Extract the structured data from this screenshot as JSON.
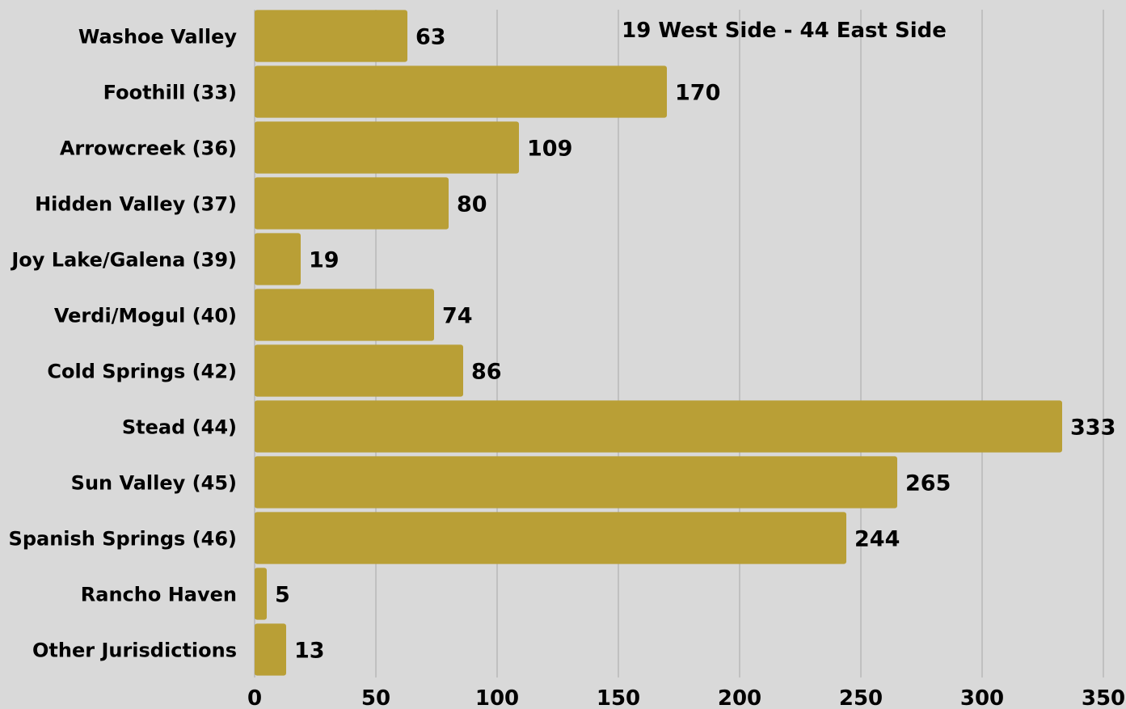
{
  "chart_data": {
    "type": "bar",
    "orientation": "horizontal",
    "categories": [
      "Washoe Valley",
      "Foothill (33)",
      "Arrowcreek (36)",
      "Hidden Valley (37)",
      "Joy Lake/Galena (39)",
      "Verdi/Mogul (40)",
      "Cold Springs (42)",
      "Stead (44)",
      "Sun Valley (45)",
      "Spanish Springs (46)",
      "Rancho Haven",
      "Other Jurisdictions"
    ],
    "values": [
      63,
      170,
      109,
      80,
      19,
      74,
      86,
      333,
      265,
      244,
      5,
      13
    ],
    "value_labels": [
      "63",
      "170",
      "109",
      "80",
      "19",
      "74",
      "86",
      "333",
      "265",
      "244",
      "5",
      "13"
    ],
    "xlim": [
      0,
      350
    ],
    "x_ticks": [
      "0",
      "50",
      "100",
      "150",
      "200",
      "250",
      "300",
      "350"
    ],
    "x_tick_values": [
      0,
      50,
      100,
      150,
      200,
      250,
      300,
      350
    ],
    "annotation": "19 West Side - 44 East Side",
    "grid": "vertical",
    "title": "",
    "xlabel": "",
    "ylabel": "",
    "colors": {
      "background": "#d9d9d9",
      "bar": "#b99f36",
      "text": "#000000",
      "grid": "#a6a6a6"
    }
  }
}
